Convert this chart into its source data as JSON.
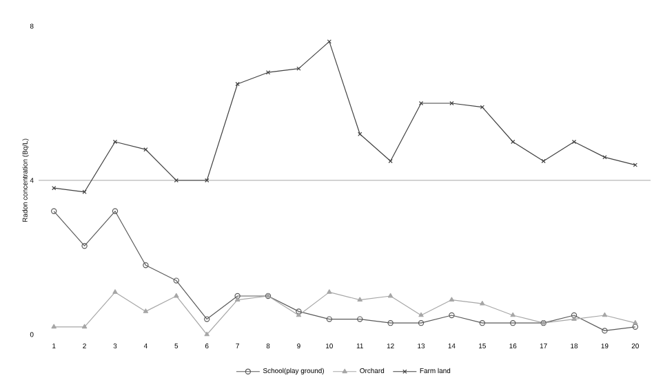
{
  "chart_data": {
    "type": "line",
    "ylabel": "Radon concentration (Bq/L)",
    "categories": [
      "1",
      "2",
      "3",
      "4",
      "5",
      "6",
      "7",
      "8",
      "9",
      "10",
      "11",
      "12",
      "13",
      "14",
      "15",
      "16",
      "17",
      "18",
      "19",
      "20"
    ],
    "series": [
      {
        "name": "School(play ground)",
        "color": "#595959",
        "marker": "circle",
        "values": [
          3.2,
          2.3,
          3.2,
          1.8,
          1.4,
          0.4,
          1.0,
          1.0,
          0.6,
          0.4,
          0.4,
          0.3,
          0.3,
          0.5,
          0.3,
          0.3,
          0.3,
          0.5,
          0.1,
          0.2
        ]
      },
      {
        "name": "Orchard",
        "color": "#a6a6a6",
        "marker": "triangle",
        "values": [
          0.2,
          0.2,
          1.1,
          0.6,
          1.0,
          0.0,
          0.9,
          1.0,
          0.5,
          1.1,
          0.9,
          1.0,
          0.5,
          0.9,
          0.8,
          0.5,
          0.3,
          0.4,
          0.5,
          0.3
        ]
      },
      {
        "name": "Farm land",
        "color": "#404040",
        "marker": "cross",
        "values": [
          3.8,
          3.7,
          5.0,
          4.8,
          4.0,
          4.0,
          6.5,
          6.8,
          6.9,
          7.6,
          5.2,
          4.5,
          6.0,
          6.0,
          5.9,
          5.0,
          4.5,
          5.0,
          4.6,
          4.4
        ]
      }
    ],
    "ylim": [
      0,
      8
    ],
    "yticks": [
      0,
      4,
      8
    ],
    "ref_lines": [
      {
        "axis": "y",
        "value": 4,
        "color": "#a6a6a6"
      }
    ],
    "grid": false,
    "legend": "bottom"
  }
}
